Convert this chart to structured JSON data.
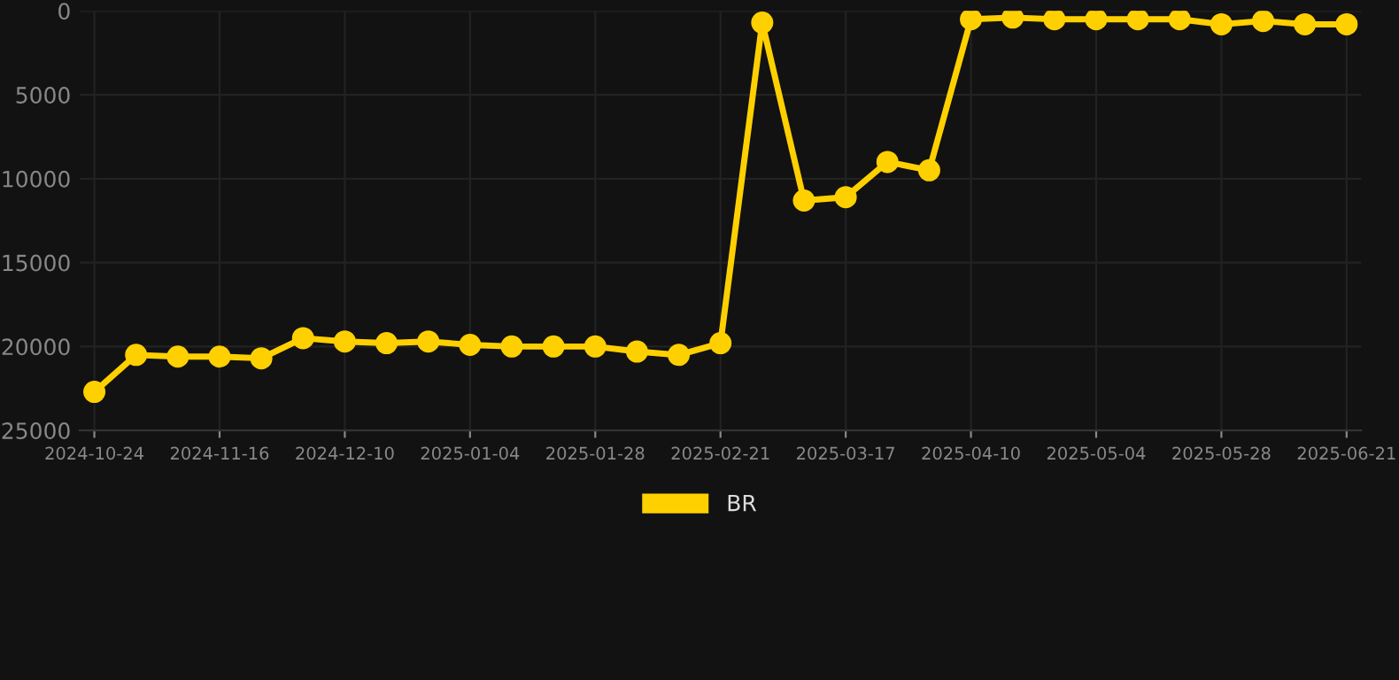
{
  "chart_data": {
    "type": "line",
    "categories": [
      "2024-10-24",
      null,
      null,
      "2024-11-16",
      null,
      null,
      "2024-12-10",
      null,
      null,
      "2025-01-04",
      null,
      null,
      "2025-01-28",
      null,
      null,
      "2025-02-21",
      null,
      null,
      "2025-03-17",
      null,
      null,
      "2025-04-10",
      null,
      null,
      "2025-05-04",
      null,
      null,
      "2025-05-28",
      null,
      null,
      "2025-06-21"
    ],
    "series": [
      {
        "name": "BR",
        "color": "#ffd000",
        "values": [
          22700,
          20500,
          20600,
          20600,
          20700,
          19500,
          19700,
          19800,
          19700,
          19900,
          20000,
          20000,
          20000,
          20300,
          20500,
          19800,
          700,
          11300,
          11100,
          9000,
          9500,
          500,
          400,
          500,
          500,
          500,
          500,
          800,
          600,
          800,
          800
        ]
      }
    ],
    "ylim": [
      25000,
      0
    ],
    "yticks": [
      0,
      5000,
      10000,
      15000,
      20000,
      25000
    ],
    "grid": true,
    "legend": "bottom",
    "marker": "circle",
    "line_style": "solid"
  }
}
